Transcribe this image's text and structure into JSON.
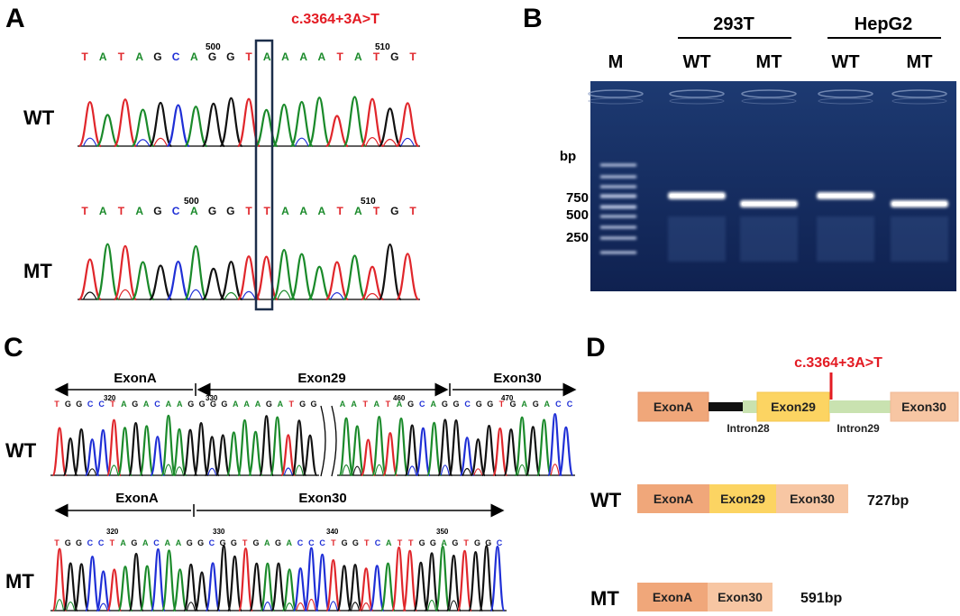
{
  "panels": {
    "a": "A",
    "b": "B",
    "c": "C",
    "d": "D"
  },
  "panel_a": {
    "mutation": "c.3364+3A>T",
    "wt_label": "WT",
    "mt_label": "MT",
    "wt_sequence": [
      "T",
      "A",
      "T",
      "A",
      "G",
      "C",
      "A",
      "G",
      "G",
      "T",
      "A",
      "A",
      "A",
      "A",
      "T",
      "A",
      "T",
      "G",
      "T"
    ],
    "mt_sequence": [
      "T",
      "A",
      "T",
      "A",
      "G",
      "C",
      "A",
      "G",
      "G",
      "T",
      "T",
      "A",
      "A",
      "A",
      "T",
      "A",
      "T",
      "G",
      "T"
    ],
    "pos_500": "500",
    "pos_510": "510"
  },
  "panel_b": {
    "marker_label": "M",
    "group_293t": "293T",
    "group_hepg2": "HepG2",
    "lanes": [
      "WT",
      "MT",
      "WT",
      "MT"
    ],
    "bp_unit": "bp",
    "ladder_labels": [
      "750",
      "500",
      "250"
    ]
  },
  "panel_c": {
    "wt_label": "WT",
    "mt_label": "MT",
    "wt_exons": [
      "ExonA",
      "Exon29",
      "Exon30"
    ],
    "mt_exons": [
      "ExonA",
      "Exon30"
    ],
    "wt_seq_left": [
      "T",
      "G",
      "G",
      "C",
      "C",
      "T",
      "A",
      "G",
      "A",
      "C",
      "A",
      "A",
      "G",
      "G",
      "G",
      "G",
      "A",
      "A",
      "A",
      "G",
      "A",
      "T",
      "G",
      "G"
    ],
    "wt_seq_right": [
      "A",
      "A",
      "T",
      "A",
      "T",
      "A",
      "G",
      "C",
      "A",
      "G",
      "G",
      "C",
      "G",
      "G",
      "T",
      "G",
      "A",
      "G",
      "A",
      "C",
      "C"
    ],
    "mt_seq": [
      "T",
      "G",
      "G",
      "C",
      "C",
      "T",
      "A",
      "G",
      "A",
      "C",
      "A",
      "A",
      "G",
      "G",
      "C",
      "G",
      "G",
      "T",
      "G",
      "A",
      "G",
      "A",
      "C",
      "C",
      "C",
      "T",
      "G",
      "G",
      "T",
      "C",
      "A",
      "T",
      "T",
      "G",
      "G",
      "A",
      "G",
      "T",
      "G",
      "G",
      "C"
    ],
    "wt_positions": [
      "320",
      "330",
      "460",
      "470"
    ],
    "mt_positions": [
      "320",
      "330",
      "340",
      "350"
    ]
  },
  "panel_d": {
    "mutation": "c.3364+3A>T",
    "genomic": [
      "ExonA",
      "Exon29",
      "Exon30"
    ],
    "introns": [
      "Intron28",
      "Intron29"
    ],
    "wt_label": "WT",
    "wt_boxes": [
      "ExonA",
      "Exon29",
      "Exon30"
    ],
    "wt_size": "727bp",
    "mt_label": "MT",
    "mt_boxes": [
      "ExonA",
      "Exon30"
    ],
    "mt_size": "591bp",
    "colors": {
      "exonA": "#f0a77a",
      "exon29": "#fcd462",
      "exon30": "#f7c6a3",
      "intron": "#c9e2b0"
    }
  },
  "base_colors": {
    "A": "#1a8a2a",
    "C": "#1f2fd6",
    "G": "#111111",
    "T": "#e0262b"
  }
}
